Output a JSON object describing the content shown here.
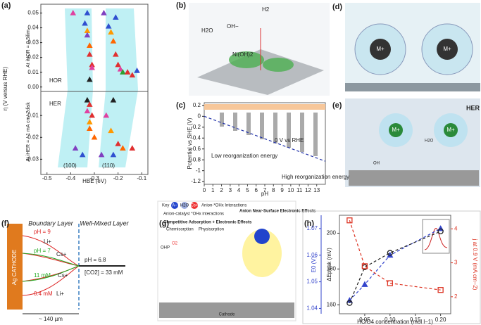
{
  "panel_labels": [
    "(a)",
    "(b)",
    "(c)",
    "(d)",
    "(e)",
    "(f)",
    "(g)",
    "(h)"
  ],
  "panel_a": {
    "y_label": "η (V versus RHE)"
  },
  "chart_data": [
    {
      "type": "scatter",
      "y_label": "At iHOR = 0.5ilim",
      "annotations": [
        "HOR"
      ],
      "xlim": [
        -0.52,
        -0.08
      ],
      "ylim": [
        -0.003,
        0.055
      ],
      "yticks": [
        {
          "value": 0,
          "label": "0.00"
        },
        0.01,
        0.02,
        0.03,
        0.04,
        0.05
      ],
      "x": [
        -0.39,
        -0.33,
        -0.34,
        -0.33,
        -0.33,
        -0.32,
        -0.32,
        -0.31,
        -0.31,
        -0.32,
        -0.26,
        -0.21,
        -0.24,
        -0.23,
        -0.22,
        -0.21,
        -0.2,
        -0.19,
        -0.18,
        -0.16,
        -0.14,
        -0.12
      ],
      "values": [
        0.05,
        0.05,
        0.043,
        0.038,
        0.035,
        0.028,
        0.022,
        0.015,
        0.013,
        0.005,
        0.05,
        0.047,
        0.041,
        0.037,
        0.031,
        0.022,
        0.015,
        0.012,
        0.01,
        0.01,
        0.008,
        0.011
      ],
      "colors": [
        "#e040a0",
        "#3050d0",
        "#3050d0",
        "#ff9900",
        "#8040c0",
        "#ff6600",
        "#e03030",
        "#e03030",
        "#e040a0",
        "#222222",
        "#8040c0",
        "#3050d0",
        "#3050d0",
        "#ff9900",
        "#ff6600",
        "#e03030",
        "#e03030",
        "#e040a0",
        "#30a030",
        "#e03030",
        "#e03030",
        "#3050d0"
      ]
    },
    {
      "type": "scatter",
      "y_label": "At iHER = −1 mA cm−2disk",
      "x_label": "HBE (eV)",
      "annotations": [
        "HER",
        "(100)",
        "(110)"
      ],
      "xlim": [
        -0.52,
        -0.08
      ],
      "ylim": [
        -0.036,
        0.001
      ],
      "xticks": [
        -0.5,
        -0.4,
        -0.3,
        -0.2,
        -0.1
      ],
      "yticks": [
        -0.01,
        -0.02,
        -0.03
      ],
      "x": [
        -0.33,
        -0.32,
        -0.33,
        -0.31,
        -0.32,
        -0.32,
        -0.3,
        -0.38,
        -0.35,
        -0.22,
        -0.25,
        -0.23,
        -0.2,
        -0.18,
        -0.22,
        -0.14,
        -0.27
      ],
      "values": [
        -0.003,
        -0.005,
        -0.008,
        -0.01,
        -0.013,
        -0.016,
        -0.02,
        -0.025,
        -0.028,
        -0.003,
        -0.01,
        -0.017,
        -0.023,
        -0.025,
        -0.028,
        -0.025,
        -0.028
      ],
      "colors": [
        "#222222",
        "#e03030",
        "#e040a0",
        "#e03030",
        "#ff9900",
        "#ff6600",
        "#ff6600",
        "#8040c0",
        "#3050d0",
        "#222222",
        "#e040a0",
        "#ff9900",
        "#e03030",
        "#ff6600",
        "#3050d0",
        "#e03030",
        "#8040c0"
      ]
    },
    {
      "type": "line",
      "x_label": "pH",
      "y_label": "Potential vs SHE (V)",
      "annotations": [
        "0 V vs RHE",
        "Low reorganization energy",
        "High reorganization energy"
      ],
      "xlim": [
        0,
        14
      ],
      "ylim": [
        -1.25,
        0.25
      ],
      "xticks": [
        0,
        1,
        2,
        3,
        4,
        5,
        6,
        7,
        8,
        9,
        10,
        11,
        12,
        13
      ],
      "yticks": [
        0.2,
        0,
        -0.2,
        -0.4,
        -0.6,
        -0.8,
        -1,
        -1.2
      ],
      "x": [
        0,
        14
      ],
      "values": [
        0,
        -0.826
      ],
      "color": "#2233aa"
    },
    {
      "type": "line",
      "x_label": "HClO4 concentration (mol l−1)",
      "y_label": "E0 (V)",
      "y2_label": "ΔEpeak (mV)",
      "y3_label": "j at 0.9 V (mA cm−2)",
      "xlim": [
        0,
        0.22
      ],
      "ylim": [
        1.038,
        1.075
      ],
      "y2lim": [
        155,
        210
      ],
      "y3lim": [
        1.5,
        4.4
      ],
      "xticks": [
        0.05,
        {
          "value": 0.1,
          "label": "0.10"
        },
        0.15,
        {
          "value": 0.2,
          "label": "0.20"
        }
      ],
      "yticks": [
        1.04,
        1.05,
        1.06,
        1.07
      ],
      "y2ticks": [
        160,
        180,
        200
      ],
      "y3ticks": [
        2,
        3,
        4
      ],
      "x": [
        0.02,
        0.05,
        0.1,
        0.2
      ],
      "series": [
        {
          "values": [
            1.043,
            1.049,
            1.06,
            1.07
          ],
          "color": "#3344cc",
          "marker": "triangle"
        },
        {
          "values": [
            161,
            181,
            189,
            201
          ],
          "color": "#222222",
          "marker": "circle",
          "axis": "y2"
        },
        {
          "values": [
            4.25,
            2.9,
            2.4,
            2.2
          ],
          "color": "#dd3322",
          "marker": "square",
          "axis": "y3"
        }
      ]
    }
  ],
  "panel_b": {
    "labels": [
      "H2",
      "OH−",
      "H2O",
      "Ni(OH)2"
    ]
  },
  "panel_d": {
    "labels": [
      "M+",
      "M+"
    ]
  },
  "panel_e": {
    "title": "HER",
    "labels": [
      "M+",
      "M+",
      "H2O",
      "OH"
    ]
  },
  "panel_f": {
    "boundary_layer": "Boundary Layer",
    "well_mixed_layer": "Well-Mixed Layer",
    "cathode": "Ag CATHODE",
    "labels": [
      "pH = 9",
      "Li+",
      "pH = 7",
      "Cs+",
      "11 mM",
      "Cs+",
      "0.4 mM",
      "Li+"
    ],
    "bulk_ph": "pH = 6.8",
    "co2": "[CO2] = 33 mM",
    "width": "~ 140 µm"
  },
  "panel_g": {
    "key": "Key",
    "legend": [
      "A−",
      "H2O",
      "Cs+",
      "Anion-*OHx Interactions",
      "Anion-catalyst *OHx interactions"
    ],
    "left_title": "Competitive Adsorption + Electronic Effects",
    "chemisorption": "Chemisorption",
    "physisorption": "Physisorption",
    "right_title": "Anion Near-Surface Electronic Effects",
    "ohp": "OHP",
    "o2": "O2",
    "cathode": "Cathode"
  }
}
